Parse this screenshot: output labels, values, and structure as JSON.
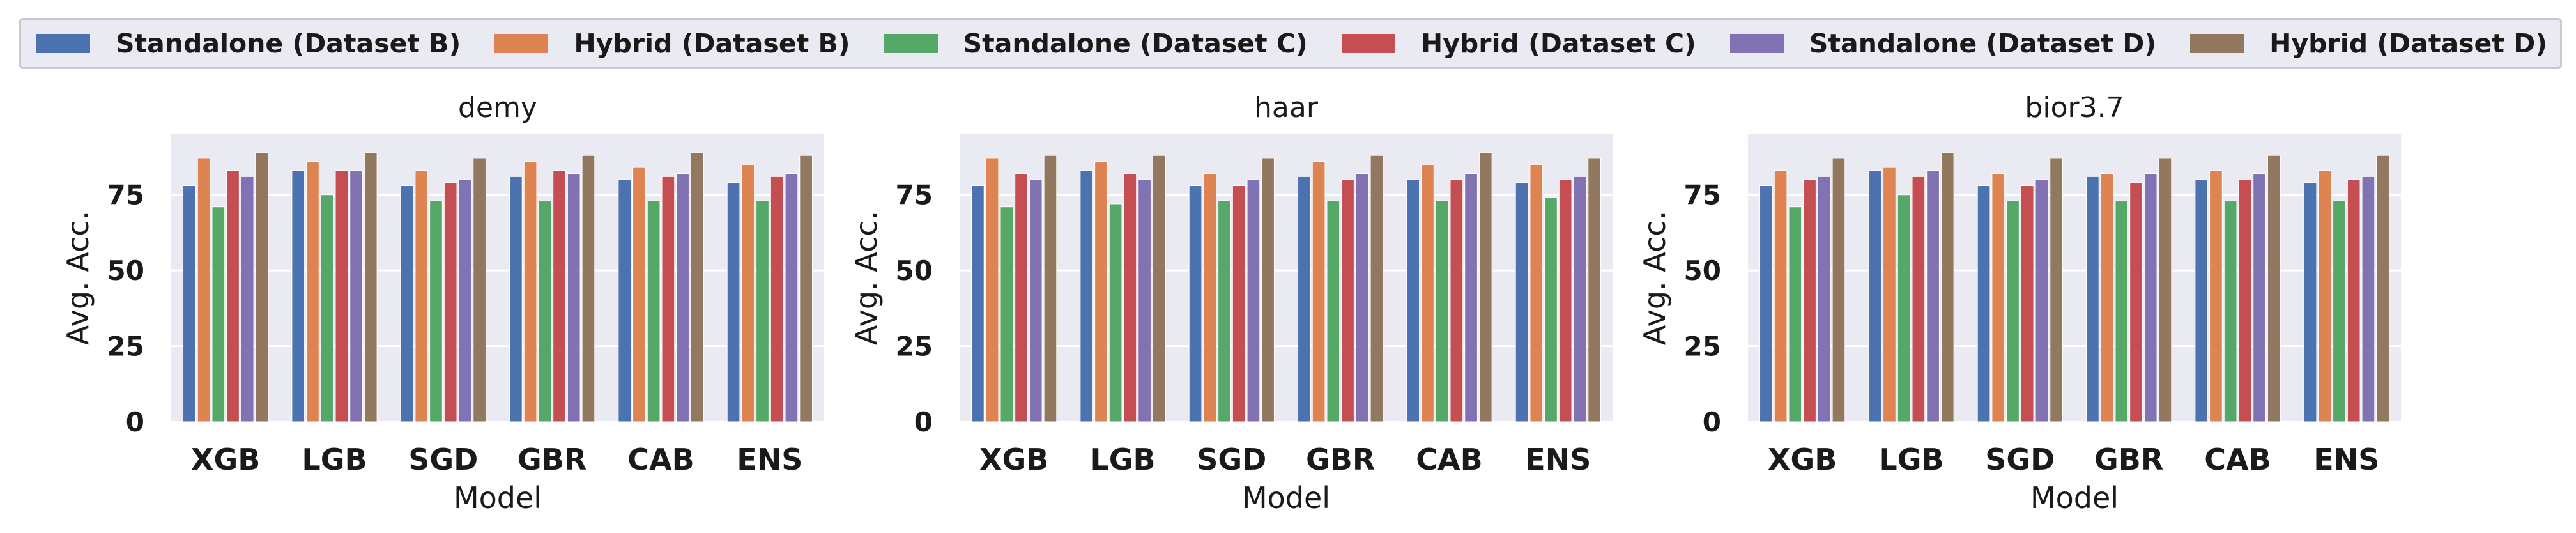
{
  "legend": {
    "items": [
      {
        "label": "Standalone (Dataset B)",
        "color": "#4c72b0"
      },
      {
        "label": "Hybrid (Dataset B)",
        "color": "#dd8452"
      },
      {
        "label": "Standalone (Dataset C)",
        "color": "#55a868"
      },
      {
        "label": "Hybrid (Dataset C)",
        "color": "#c44e52"
      },
      {
        "label": "Standalone (Dataset D)",
        "color": "#8172b3"
      },
      {
        "label": "Hybrid (Dataset D)",
        "color": "#937860"
      }
    ]
  },
  "chart_data": [
    {
      "type": "bar",
      "title": "demy",
      "xlabel": "Model",
      "ylabel": "Avg. Acc.",
      "ylim": [
        0,
        95
      ],
      "yticks": [
        0,
        25,
        50,
        75
      ],
      "categories": [
        "XGB",
        "LGB",
        "SGD",
        "GBR",
        "CAB",
        "ENS"
      ],
      "series": [
        {
          "name": "Standalone (Dataset B)",
          "values": [
            78,
            83,
            78,
            81,
            80,
            79
          ]
        },
        {
          "name": "Hybrid (Dataset B)",
          "values": [
            87,
            86,
            83,
            86,
            84,
            85
          ]
        },
        {
          "name": "Standalone (Dataset C)",
          "values": [
            71,
            75,
            73,
            73,
            73,
            73
          ]
        },
        {
          "name": "Hybrid (Dataset C)",
          "values": [
            83,
            83,
            79,
            83,
            81,
            81
          ]
        },
        {
          "name": "Standalone (Dataset D)",
          "values": [
            81,
            83,
            80,
            82,
            82,
            82
          ]
        },
        {
          "name": "Hybrid (Dataset D)",
          "values": [
            89,
            89,
            87,
            88,
            89,
            88
          ]
        }
      ]
    },
    {
      "type": "bar",
      "title": "haar",
      "xlabel": "Model",
      "ylabel": "Avg. Acc.",
      "ylim": [
        0,
        95
      ],
      "yticks": [
        0,
        25,
        50,
        75
      ],
      "categories": [
        "XGB",
        "LGB",
        "SGD",
        "GBR",
        "CAB",
        "ENS"
      ],
      "series": [
        {
          "name": "Standalone (Dataset B)",
          "values": [
            78,
            83,
            78,
            81,
            80,
            79
          ]
        },
        {
          "name": "Hybrid (Dataset B)",
          "values": [
            87,
            86,
            82,
            86,
            85,
            85
          ]
        },
        {
          "name": "Standalone (Dataset C)",
          "values": [
            71,
            72,
            73,
            73,
            73,
            74
          ]
        },
        {
          "name": "Hybrid (Dataset C)",
          "values": [
            82,
            82,
            78,
            80,
            80,
            80
          ]
        },
        {
          "name": "Standalone (Dataset D)",
          "values": [
            80,
            80,
            80,
            82,
            82,
            81
          ]
        },
        {
          "name": "Hybrid (Dataset D)",
          "values": [
            88,
            88,
            87,
            88,
            89,
            87
          ]
        }
      ]
    },
    {
      "type": "bar",
      "title": "bior3.7",
      "xlabel": "Model",
      "ylabel": "Avg. Acc.",
      "ylim": [
        0,
        95
      ],
      "yticks": [
        0,
        25,
        50,
        75
      ],
      "categories": [
        "XGB",
        "LGB",
        "SGD",
        "GBR",
        "CAB",
        "ENS"
      ],
      "series": [
        {
          "name": "Standalone (Dataset B)",
          "values": [
            78,
            83,
            78,
            81,
            80,
            79
          ]
        },
        {
          "name": "Hybrid (Dataset B)",
          "values": [
            83,
            84,
            82,
            82,
            83,
            83
          ]
        },
        {
          "name": "Standalone (Dataset C)",
          "values": [
            71,
            75,
            73,
            73,
            73,
            73
          ]
        },
        {
          "name": "Hybrid (Dataset C)",
          "values": [
            80,
            81,
            78,
            79,
            80,
            80
          ]
        },
        {
          "name": "Standalone (Dataset D)",
          "values": [
            81,
            83,
            80,
            82,
            82,
            81
          ]
        },
        {
          "name": "Hybrid (Dataset D)",
          "values": [
            87,
            89,
            87,
            87,
            88,
            88
          ]
        }
      ]
    }
  ]
}
